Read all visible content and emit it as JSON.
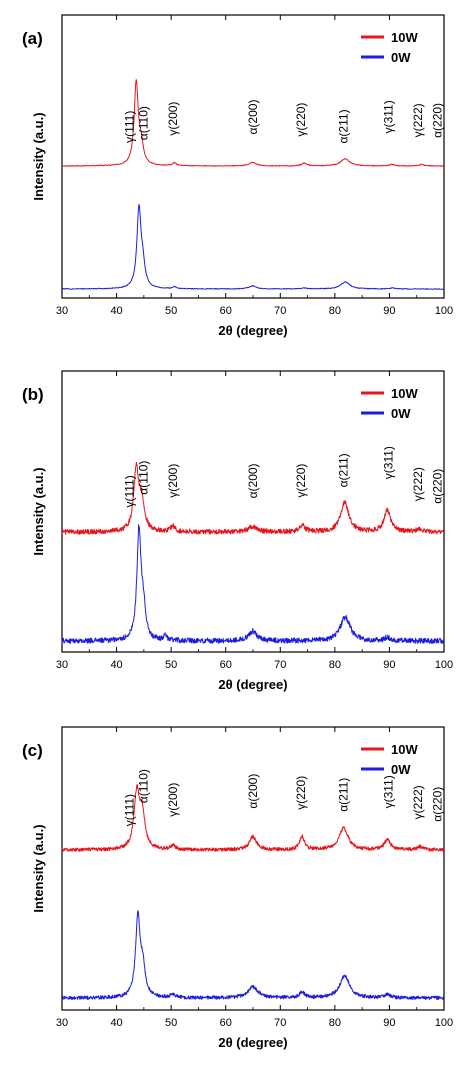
{
  "figure_colors": {
    "10W": "#e8141b",
    "0W": "#1c1ce0"
  },
  "chart_data": [
    {
      "type": "line",
      "panel_label": "(a)",
      "xlabel": "2θ (degree)",
      "ylabel": "Intensity (a.u.)",
      "xlim": [
        30,
        100
      ],
      "xticks": [
        "30",
        "40",
        "50",
        "60",
        "70",
        "80",
        "90",
        "100"
      ],
      "legend": {
        "placement": "top-right",
        "entries": [
          "10W",
          "0W"
        ]
      },
      "grid": false,
      "noise": 0.004,
      "series": [
        {
          "name": "10W",
          "color": "#e8141b",
          "baseline": 0.0,
          "peaks": [
            {
              "x": 43.6,
              "height": 0.82,
              "width": 0.45
            },
            {
              "x": 44.5,
              "height": 0.18,
              "width": 0.5
            },
            {
              "x": 50.6,
              "height": 0.03,
              "width": 0.4
            },
            {
              "x": 64.9,
              "height": 0.035,
              "width": 0.8
            },
            {
              "x": 74.4,
              "height": 0.03,
              "width": 0.5
            },
            {
              "x": 81.9,
              "height": 0.07,
              "width": 1.0
            },
            {
              "x": 90.5,
              "height": 0.015,
              "width": 0.5
            },
            {
              "x": 95.9,
              "height": 0.015,
              "width": 0.5
            }
          ]
        },
        {
          "name": "0W",
          "color": "#1c1ce0",
          "baseline": 0.0,
          "peaks": [
            {
              "x": 44.1,
              "height": 0.78,
              "width": 0.45
            },
            {
              "x": 44.8,
              "height": 0.2,
              "width": 0.5
            },
            {
              "x": 50.6,
              "height": 0.02,
              "width": 0.4
            },
            {
              "x": 64.9,
              "height": 0.03,
              "width": 0.8
            },
            {
              "x": 74.4,
              "height": 0.01,
              "width": 0.5
            },
            {
              "x": 81.9,
              "height": 0.07,
              "width": 1.0
            },
            {
              "x": 90.5,
              "height": 0.01,
              "width": 0.5
            }
          ]
        }
      ],
      "annotations": [
        "γ(111)",
        "α(110)",
        "γ(200)",
        "α(200)",
        "γ(220)",
        "α(211)",
        "γ(311)",
        "γ(222)",
        "α(220)"
      ]
    },
    {
      "type": "line",
      "panel_label": "(b)",
      "xlabel": "2θ (degree)",
      "ylabel": "Intensity (a.u.)",
      "xlim": [
        30,
        100
      ],
      "xticks": [
        "30",
        "40",
        "50",
        "60",
        "70",
        "80",
        "90",
        "100"
      ],
      "legend": {
        "placement": "top-right",
        "entries": [
          "10W",
          "0W"
        ]
      },
      "grid": false,
      "noise": 0.022,
      "series": [
        {
          "name": "10W",
          "color": "#e8141b",
          "baseline": 0.0,
          "peaks": [
            {
              "x": 43.6,
              "height": 0.55,
              "width": 0.55
            },
            {
              "x": 44.6,
              "height": 0.25,
              "width": 0.6
            },
            {
              "x": 50.3,
              "height": 0.05,
              "width": 0.5
            },
            {
              "x": 64.9,
              "height": 0.05,
              "width": 0.9
            },
            {
              "x": 74.0,
              "height": 0.06,
              "width": 0.6
            },
            {
              "x": 81.8,
              "height": 0.27,
              "width": 0.9
            },
            {
              "x": 89.6,
              "height": 0.2,
              "width": 0.7
            },
            {
              "x": 95.6,
              "height": 0.03,
              "width": 0.6
            }
          ]
        },
        {
          "name": "0W",
          "color": "#1c1ce0",
          "baseline": 0.0,
          "peaks": [
            {
              "x": 44.1,
              "height": 0.9,
              "width": 0.45
            },
            {
              "x": 44.9,
              "height": 0.25,
              "width": 0.5
            },
            {
              "x": 48.9,
              "height": 0.04,
              "width": 0.4
            },
            {
              "x": 64.9,
              "height": 0.08,
              "width": 0.9
            },
            {
              "x": 81.9,
              "height": 0.2,
              "width": 1.1
            },
            {
              "x": 89.6,
              "height": 0.03,
              "width": 0.6
            }
          ]
        }
      ],
      "annotations": [
        "γ(111)",
        "α(110)",
        "γ(200)",
        "α(200)",
        "γ(220)",
        "α(211)",
        "γ(311)",
        "γ(222)",
        "α(220)"
      ]
    },
    {
      "type": "line",
      "panel_label": "(c)",
      "xlabel": "2θ (degree)",
      "ylabel": "Intensity (a.u.)",
      "xlim": [
        30,
        100
      ],
      "xticks": [
        "30",
        "40",
        "50",
        "60",
        "70",
        "80",
        "90",
        "100"
      ],
      "legend": {
        "placement": "top-right",
        "entries": [
          "10W",
          "0W"
        ]
      },
      "grid": false,
      "noise": 0.016,
      "series": [
        {
          "name": "10W",
          "color": "#e8141b",
          "baseline": 0.0,
          "peaks": [
            {
              "x": 43.7,
              "height": 0.5,
              "width": 0.6
            },
            {
              "x": 44.7,
              "height": 0.3,
              "width": 0.6
            },
            {
              "x": 50.3,
              "height": 0.04,
              "width": 0.5
            },
            {
              "x": 65.0,
              "height": 0.12,
              "width": 0.8
            },
            {
              "x": 74.0,
              "height": 0.12,
              "width": 0.55
            },
            {
              "x": 81.6,
              "height": 0.2,
              "width": 1.0
            },
            {
              "x": 89.6,
              "height": 0.09,
              "width": 0.7
            },
            {
              "x": 95.6,
              "height": 0.03,
              "width": 0.6
            }
          ]
        },
        {
          "name": "0W",
          "color": "#1c1ce0",
          "baseline": 0.0,
          "peaks": [
            {
              "x": 43.9,
              "height": 0.72,
              "width": 0.5
            },
            {
              "x": 44.8,
              "height": 0.25,
              "width": 0.55
            },
            {
              "x": 50.3,
              "height": 0.03,
              "width": 0.5
            },
            {
              "x": 65.0,
              "height": 0.1,
              "width": 1.1
            },
            {
              "x": 74.0,
              "height": 0.05,
              "width": 0.6
            },
            {
              "x": 81.8,
              "height": 0.2,
              "width": 1.1
            },
            {
              "x": 89.6,
              "height": 0.03,
              "width": 0.6
            }
          ]
        }
      ],
      "annotations": [
        "γ(111)",
        "α(110)",
        "γ(200)",
        "α(200)",
        "γ(220)",
        "α(211)",
        "γ(311)",
        "γ(222)",
        "α(220)"
      ]
    }
  ]
}
